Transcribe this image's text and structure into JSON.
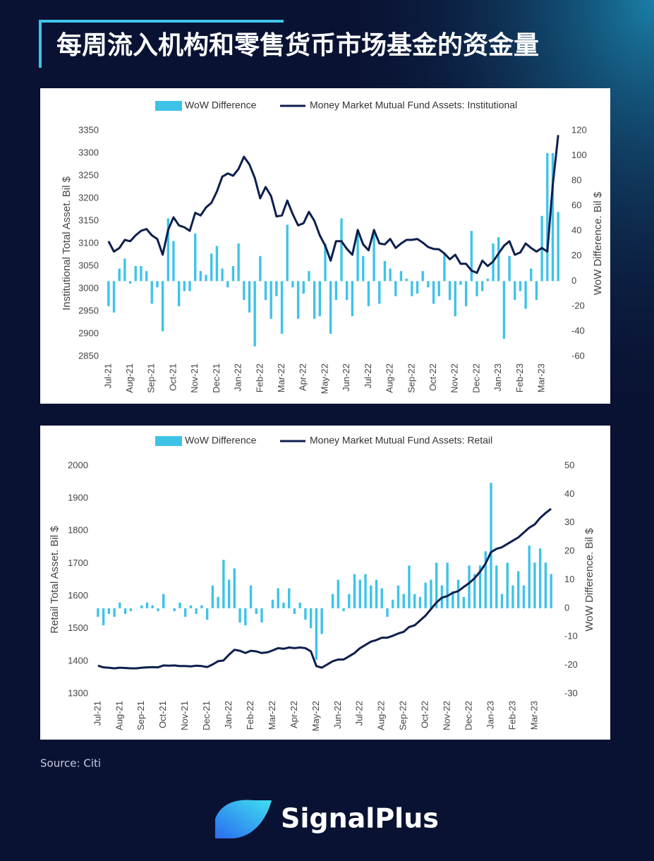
{
  "title": "每周流入机构和零售货币市场基金的资金量",
  "chart_data": [
    {
      "type": "combo",
      "categories": [
        "Jul-21",
        null,
        null,
        null,
        "Aug-21",
        null,
        null,
        null,
        "Sep-21",
        null,
        null,
        null,
        "Oct-21",
        null,
        null,
        null,
        "Nov-21",
        null,
        null,
        null,
        "Dec-21",
        null,
        null,
        null,
        "Jan-22",
        null,
        null,
        null,
        "Feb-22",
        null,
        null,
        null,
        "Mar-22",
        null,
        null,
        null,
        "Apr-22",
        null,
        null,
        null,
        "May-22",
        null,
        null,
        null,
        "Jun-22",
        null,
        null,
        null,
        "Jul-22",
        null,
        null,
        null,
        "Aug-22",
        null,
        null,
        null,
        "Sep-22",
        null,
        null,
        null,
        "Oct-22",
        null,
        null,
        null,
        "Nov-22",
        null,
        null,
        null,
        "Dec-22",
        null,
        null,
        null,
        "Jan-23",
        null,
        null,
        null,
        "Feb-23",
        null,
        null,
        null,
        "Mar-23",
        null,
        null,
        null
      ],
      "y_label": "Institutional Total Asset. Bil $",
      "y2_label": "WoW Difference. Bil $",
      "ylim": [
        2850,
        3350
      ],
      "yticks": [
        2850,
        2900,
        2950,
        3000,
        3050,
        3100,
        3150,
        3200,
        3250,
        3300,
        3350
      ],
      "y2lim": [
        -60,
        120
      ],
      "y2ticks": [
        -60,
        -40,
        -20,
        0,
        20,
        40,
        60,
        80,
        100,
        120
      ],
      "series": [
        {
          "name": "WoW Difference",
          "type": "bar",
          "axis": "y2",
          "color": "#3ec3e8",
          "values": [
            -20,
            -25,
            10,
            18,
            -2,
            12,
            12,
            8,
            -18,
            -5,
            -40,
            50,
            32,
            -20,
            -8,
            -8,
            38,
            8,
            5,
            22,
            28,
            10,
            -5,
            12,
            30,
            -15,
            -25,
            -52,
            20,
            -15,
            -30,
            -12,
            -42,
            45,
            -5,
            -30,
            -10,
            8,
            -30,
            -28,
            30,
            -42,
            -15,
            50,
            -15,
            -28,
            40,
            20,
            -20,
            40,
            -18,
            16,
            10,
            -12,
            8,
            2,
            -12,
            -10,
            8,
            -5,
            -18,
            -12,
            22,
            -15,
            -28,
            -3,
            -20,
            40,
            -12,
            -8,
            2,
            30,
            35,
            -46,
            20,
            -15,
            -8,
            -22,
            10,
            -15,
            52,
            102,
            102,
            55
          ]
        },
        {
          "name": "Money Market Mutual Fund Assets: Institutional",
          "type": "line",
          "color": "#0d1f4d",
          "values": [
            3105,
            3082,
            3090,
            3108,
            3105,
            3118,
            3128,
            3132,
            3118,
            3110,
            3075,
            3130,
            3158,
            3140,
            3136,
            3128,
            3168,
            3162,
            3180,
            3190,
            3215,
            3248,
            3255,
            3250,
            3265,
            3292,
            3275,
            3245,
            3200,
            3225,
            3205,
            3160,
            3162,
            3195,
            3165,
            3140,
            3145,
            3170,
            3150,
            3118,
            3095,
            3062,
            3105,
            3105,
            3088,
            3075,
            3130,
            3098,
            3085,
            3130,
            3100,
            3098,
            3110,
            3090,
            3100,
            3108,
            3108,
            3110,
            3102,
            3092,
            3088,
            3087,
            3078,
            3065,
            3075,
            3055,
            3055,
            3040,
            3035,
            3062,
            3050,
            3060,
            3078,
            3095,
            3105,
            3075,
            3080,
            3100,
            3090,
            3082,
            3090,
            3082,
            3230,
            3340
          ]
        }
      ]
    },
    {
      "type": "combo",
      "categories": [
        "Jul-21",
        null,
        null,
        null,
        "Aug-21",
        null,
        null,
        null,
        "Sep-21",
        null,
        null,
        null,
        "Oct-21",
        null,
        null,
        null,
        "Nov-21",
        null,
        null,
        null,
        "Dec-21",
        null,
        null,
        null,
        "Jan-22",
        null,
        null,
        null,
        "Feb-22",
        null,
        null,
        null,
        "Mar-22",
        null,
        null,
        null,
        "Apr-22",
        null,
        null,
        null,
        "May-22",
        null,
        null,
        null,
        "Jun-22",
        null,
        null,
        null,
        "Jul-22",
        null,
        null,
        null,
        "Aug-22",
        null,
        null,
        null,
        "Sep-22",
        null,
        null,
        null,
        "Oct-22",
        null,
        null,
        null,
        "Nov-22",
        null,
        null,
        null,
        "Dec-22",
        null,
        null,
        null,
        "Jan-23",
        null,
        null,
        null,
        "Feb-23",
        null,
        null,
        null,
        "Mar-23",
        null,
        null,
        null
      ],
      "y_label": "Retail Total Asset. Bil $",
      "y2_label": "WoW Difference. Bil $",
      "ylim": [
        1300,
        2000
      ],
      "yticks": [
        1300,
        1400,
        1500,
        1600,
        1700,
        1800,
        1900,
        2000
      ],
      "y2lim": [
        -30,
        50
      ],
      "y2ticks": [
        -30,
        -20,
        -10,
        0,
        10,
        20,
        30,
        40,
        50
      ],
      "series": [
        {
          "name": "WoW Difference",
          "type": "bar",
          "axis": "y2",
          "color": "#3ec3e8",
          "values": [
            -3,
            -6,
            -2,
            -3,
            2,
            -2,
            -1,
            0,
            1,
            2,
            1,
            -1,
            5,
            0,
            -1,
            2,
            -3,
            1,
            -2,
            1,
            -4,
            8,
            4,
            17,
            10,
            14,
            -5,
            -6,
            8,
            -2,
            -5,
            0,
            3,
            7,
            2,
            7,
            -2,
            2,
            -4,
            -7,
            -18,
            -9,
            0,
            5,
            10,
            -1,
            5,
            12,
            10,
            12,
            8,
            10,
            7,
            -3,
            3,
            8,
            5,
            15,
            5,
            4,
            9,
            10,
            16,
            8,
            16,
            6,
            10,
            4,
            15,
            12,
            15,
            20,
            44,
            15,
            5,
            16,
            8,
            13,
            8,
            22,
            16,
            21,
            16,
            12
          ]
        },
        {
          "name": "Money Market Mutual Fund Assets: Retail",
          "type": "line",
          "color": "#0d1f4d",
          "values": [
            1386,
            1381,
            1380,
            1378,
            1380,
            1379,
            1378,
            1378,
            1380,
            1381,
            1382,
            1381,
            1387,
            1386,
            1387,
            1385,
            1385,
            1384,
            1386,
            1385,
            1382,
            1390,
            1400,
            1402,
            1420,
            1435,
            1432,
            1425,
            1432,
            1430,
            1425,
            1427,
            1433,
            1440,
            1438,
            1442,
            1440,
            1442,
            1440,
            1430,
            1385,
            1380,
            1390,
            1400,
            1405,
            1405,
            1415,
            1425,
            1440,
            1450,
            1460,
            1465,
            1472,
            1472,
            1478,
            1485,
            1490,
            1505,
            1510,
            1525,
            1540,
            1560,
            1580,
            1595,
            1600,
            1610,
            1615,
            1628,
            1640,
            1655,
            1675,
            1700,
            1735,
            1745,
            1750,
            1760,
            1770,
            1780,
            1795,
            1810,
            1820,
            1840,
            1855,
            1868
          ]
        }
      ]
    }
  ],
  "source": "Source: Citi",
  "logo": "SignalPlus"
}
